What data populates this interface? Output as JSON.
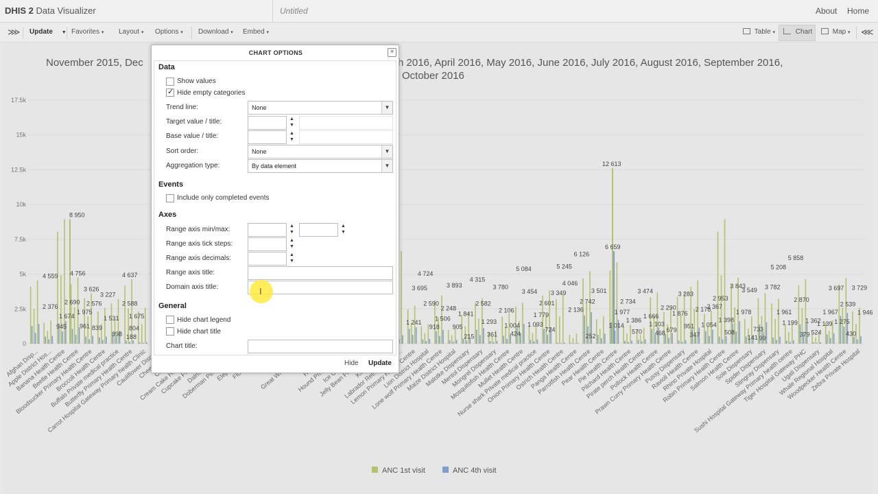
{
  "header": {
    "brand_bold": "DHIS 2",
    "brand_rest": "Data Visualizer",
    "favorite_title": "Untitled",
    "about": "About",
    "home": "Home"
  },
  "toolbar": {
    "collapse": "⋙",
    "update": "Update",
    "favorites": "Favorites",
    "layout": "Layout",
    "options": "Options",
    "download": "Download",
    "embed": "Embed",
    "table": "Table",
    "chart": "Chart",
    "map": "Map",
    "expand": "⋘"
  },
  "dialog": {
    "title": "CHART OPTIONS",
    "close": "×",
    "sections": {
      "data": "Data",
      "events": "Events",
      "axes": "Axes",
      "general": "General"
    },
    "show_values": "Show values",
    "hide_empty": "Hide empty categories",
    "trend_line_label": "Trend line:",
    "trend_line_value": "None",
    "target_label": "Target value / title:",
    "base_label": "Base value / title:",
    "sort_label": "Sort order:",
    "sort_value": "None",
    "agg_label": "Aggregation type:",
    "agg_value": "By data element",
    "completed_events": "Include only completed events",
    "range_minmax": "Range axis min/max:",
    "range_steps": "Range axis tick steps:",
    "range_decimals": "Range axis decimals:",
    "range_title": "Range axis title:",
    "domain_title": "Domain axis title:",
    "hide_legend": "Hide chart legend",
    "hide_title": "Hide chart title",
    "chart_title": "Chart title:",
    "hide_btn": "Hide",
    "update_btn": "Update"
  },
  "chart_data": {
    "type": "bar",
    "title": "November 2015, December 2015, January 2016, February 2016, March 2016, April 2016, May 2016, June 2016, July 2016, August 2016, September 2016, October 2016",
    "title_visible": [
      "November 2015, Dec",
      "h 2016, April 2016, May 2016, June 2016, July 2016, August 2016, September 2016,",
      "October 2016"
    ],
    "ylim": [
      0,
      17500
    ],
    "yticks": [
      "0",
      "2.5k",
      "5k",
      "7.5k",
      "10k",
      "12.5k",
      "15k",
      "17.5k"
    ],
    "colors": {
      "anc1": "#b5c26b",
      "anc4": "#7e9fc9"
    },
    "legend": [
      {
        "name": "ANC 1st visit",
        "color": "#b5c26b"
      },
      {
        "name": "ANC 4th visit",
        "color": "#7e9fc9"
      }
    ],
    "categories": [
      "Afghan Disp...",
      "Apple District Hos...",
      "Banana Health Centre",
      "Beetle Health Centre",
      "Bloodsucker Primary Health Centre",
      "Broccoli Health Centre",
      "Buffalo Private medical practice",
      "Butterfly Primary Health Centre",
      "Carrot Hospital Gateway Primary health Clinic",
      "Cauliflower Dispe...",
      "Cheetah Hea...",
      "Chocolate D...",
      "Cream Cake Hospital Gat...",
      "Cupcake Primary Hea...",
      "Dalmatian Priva...",
      "Doberman Pinscher Hea...",
      "Elephant Distri...",
      "Flounder Hea...",
      "Ginger D...",
      "Goofy D...",
      "Great White Specia...",
      "Hare Hea...",
      "Herring Hea...",
      "Hound Private Medic...",
      "Ice Cream Distr...",
      "Jelly Bean Primary Hea...",
      "Kingfish Hea...",
      "Labrador Retriever Priva...",
      "Lemon Primary Health Centre",
      "Lion District Hospital",
      "Lone wolf Primary Health Centre",
      "Maize District Hospital",
      "Malotke Dispensary",
      "Mentol Dispensary",
      "Mongrel Dispensary",
      "Mosquitofish Health Centre",
      "Mullet Health Centre",
      "Nurse shark Private medical practice",
      "Onion Primary Health Centre",
      "Ostrich Health Centre",
      "Panga Health Centre",
      "Parrotfish Health Centre",
      "Pear Health Centre",
      "Pie Health Centre",
      "Pilchard Health Centre",
      "Pirate perch Health Centre",
      "Pollock Health Centre",
      "Prawn Curry Primary Health Centre",
      "Pussy Dispensary",
      "Ravioli Health Centre",
      "Rhino Private Hospital",
      "Robin Primary Health Centre",
      "Salmon Health Centre",
      "Sole Dispensary",
      "Spider Dispensary",
      "Stingray Dispensary",
      "Sushi Hospital Gateway Primary health centre",
      "Tiger Hospital Gateway PHC",
      "Ugali Dispensary",
      "Whale Regional Hospital",
      "Woodpecker Health Centre",
      "Zebra Private Hospital"
    ],
    "labels_left": [
      {
        "v": 4559,
        "t": "4 559"
      },
      {
        "v": 2376,
        "t": "2 376"
      },
      {
        "v": 1674,
        "t": "1 674"
      },
      {
        "v": 945,
        "t": "945"
      },
      {
        "v": 8950,
        "t": "8 950"
      },
      {
        "v": 2690,
        "t": "2 690"
      },
      {
        "v": 4756,
        "t": "4 756"
      },
      {
        "v": 1975,
        "t": "1 975"
      },
      {
        "v": 961,
        "t": "961"
      },
      {
        "v": 3626,
        "t": "3 626"
      },
      {
        "v": 2576,
        "t": "2 576"
      },
      {
        "v": 839,
        "t": "839"
      },
      {
        "v": 3227,
        "t": "3 227"
      },
      {
        "v": 1531,
        "t": "1 531"
      },
      {
        "v": 398,
        "t": "398"
      },
      {
        "v": 4637,
        "t": "4 637"
      },
      {
        "v": 2588,
        "t": "2 588"
      },
      {
        "v": 188,
        "t": "188"
      },
      {
        "v": 804,
        "t": "804"
      },
      {
        "v": 1675,
        "t": "1 675"
      }
    ],
    "labels_right": [
      {
        "v": 1241,
        "t": "1 241"
      },
      {
        "v": 3695,
        "t": "3 695"
      },
      {
        "v": 4724,
        "t": "4 724"
      },
      {
        "v": 2590,
        "t": "2 590"
      },
      {
        "v": 918,
        "t": "918"
      },
      {
        "v": 1506,
        "t": "1 506"
      },
      {
        "v": 2248,
        "t": "2 248"
      },
      {
        "v": 3893,
        "t": "3 893"
      },
      {
        "v": 905,
        "t": "905"
      },
      {
        "v": 1841,
        "t": "1 841"
      },
      {
        "v": 215,
        "t": "215"
      },
      {
        "v": 4315,
        "t": "4 315"
      },
      {
        "v": 2582,
        "t": "2 582"
      },
      {
        "v": 1293,
        "t": "1 293"
      },
      {
        "v": 361,
        "t": "361"
      },
      {
        "v": 3780,
        "t": "3 780"
      },
      {
        "v": 2106,
        "t": "2 106"
      },
      {
        "v": 1004,
        "t": "1 004"
      },
      {
        "v": 424,
        "t": "424"
      },
      {
        "v": 5084,
        "t": "5 084"
      },
      {
        "v": 3454,
        "t": "3 454"
      },
      {
        "v": 1093,
        "t": "1 093"
      },
      {
        "v": 1779,
        "t": "1 779"
      },
      {
        "v": 2601,
        "t": "2 601"
      },
      {
        "v": 724,
        "t": "724"
      },
      {
        "v": 3349,
        "t": "3 349"
      },
      {
        "v": 5245,
        "t": "5 245"
      },
      {
        "v": 4046,
        "t": "4 046"
      },
      {
        "v": 2136,
        "t": "2 136"
      },
      {
        "v": 6126,
        "t": "6 126"
      },
      {
        "v": 2742,
        "t": "2 742"
      },
      {
        "v": 252,
        "t": "252"
      },
      {
        "v": 3501,
        "t": "3 501"
      },
      {
        "v": 12613,
        "t": "12 613"
      },
      {
        "v": 6659,
        "t": "6 659"
      },
      {
        "v": 1014,
        "t": "1 014"
      },
      {
        "v": 1977,
        "t": "1 977"
      },
      {
        "v": 2734,
        "t": "2 734"
      },
      {
        "v": 1386,
        "t": "1 386"
      },
      {
        "v": 570,
        "t": "570"
      },
      {
        "v": 3474,
        "t": "3 474"
      },
      {
        "v": 1666,
        "t": "1 666"
      },
      {
        "v": 1103,
        "t": "1 103"
      },
      {
        "v": 468,
        "t": "468"
      },
      {
        "v": 2290,
        "t": "2 290"
      },
      {
        "v": 679,
        "t": "679"
      },
      {
        "v": 1876,
        "t": "1 876"
      },
      {
        "v": 3283,
        "t": "3 283"
      },
      {
        "v": 951,
        "t": "951"
      },
      {
        "v": 347,
        "t": "347"
      },
      {
        "v": 2178,
        "t": "2 178"
      },
      {
        "v": 1054,
        "t": "1 054"
      },
      {
        "v": 2367,
        "t": "2 367"
      },
      {
        "v": 2953,
        "t": "2 953"
      },
      {
        "v": 1398,
        "t": "1 398"
      },
      {
        "v": 508,
        "t": "508"
      },
      {
        "v": 3843,
        "t": "3 843"
      },
      {
        "v": 1978,
        "t": "1 978"
      },
      {
        "v": 3549,
        "t": "3 549"
      },
      {
        "v": 141,
        "t": "141"
      },
      {
        "v": 733,
        "t": "733"
      },
      {
        "v": 99,
        "t": "99"
      },
      {
        "v": 3782,
        "t": "3 782"
      },
      {
        "v": 5208,
        "t": "5 208"
      },
      {
        "v": 1961,
        "t": "1 961"
      },
      {
        "v": 1199,
        "t": "1 199"
      },
      {
        "v": 5858,
        "t": "5 858"
      },
      {
        "v": 2870,
        "t": "2 870"
      },
      {
        "v": 379,
        "t": "379"
      },
      {
        "v": 1362,
        "t": "1 362"
      },
      {
        "v": 524,
        "t": "524"
      },
      {
        "v": 1139,
        "t": "1 139"
      },
      {
        "v": 1967,
        "t": "1 967"
      },
      {
        "v": 3697,
        "t": "3 697"
      },
      {
        "v": 1275,
        "t": "1 275"
      },
      {
        "v": 2539,
        "t": "2 539"
      },
      {
        "v": 430,
        "t": "430"
      },
      {
        "v": 3729,
        "t": "3 729"
      },
      {
        "v": 1946,
        "t": "1 946"
      }
    ]
  }
}
